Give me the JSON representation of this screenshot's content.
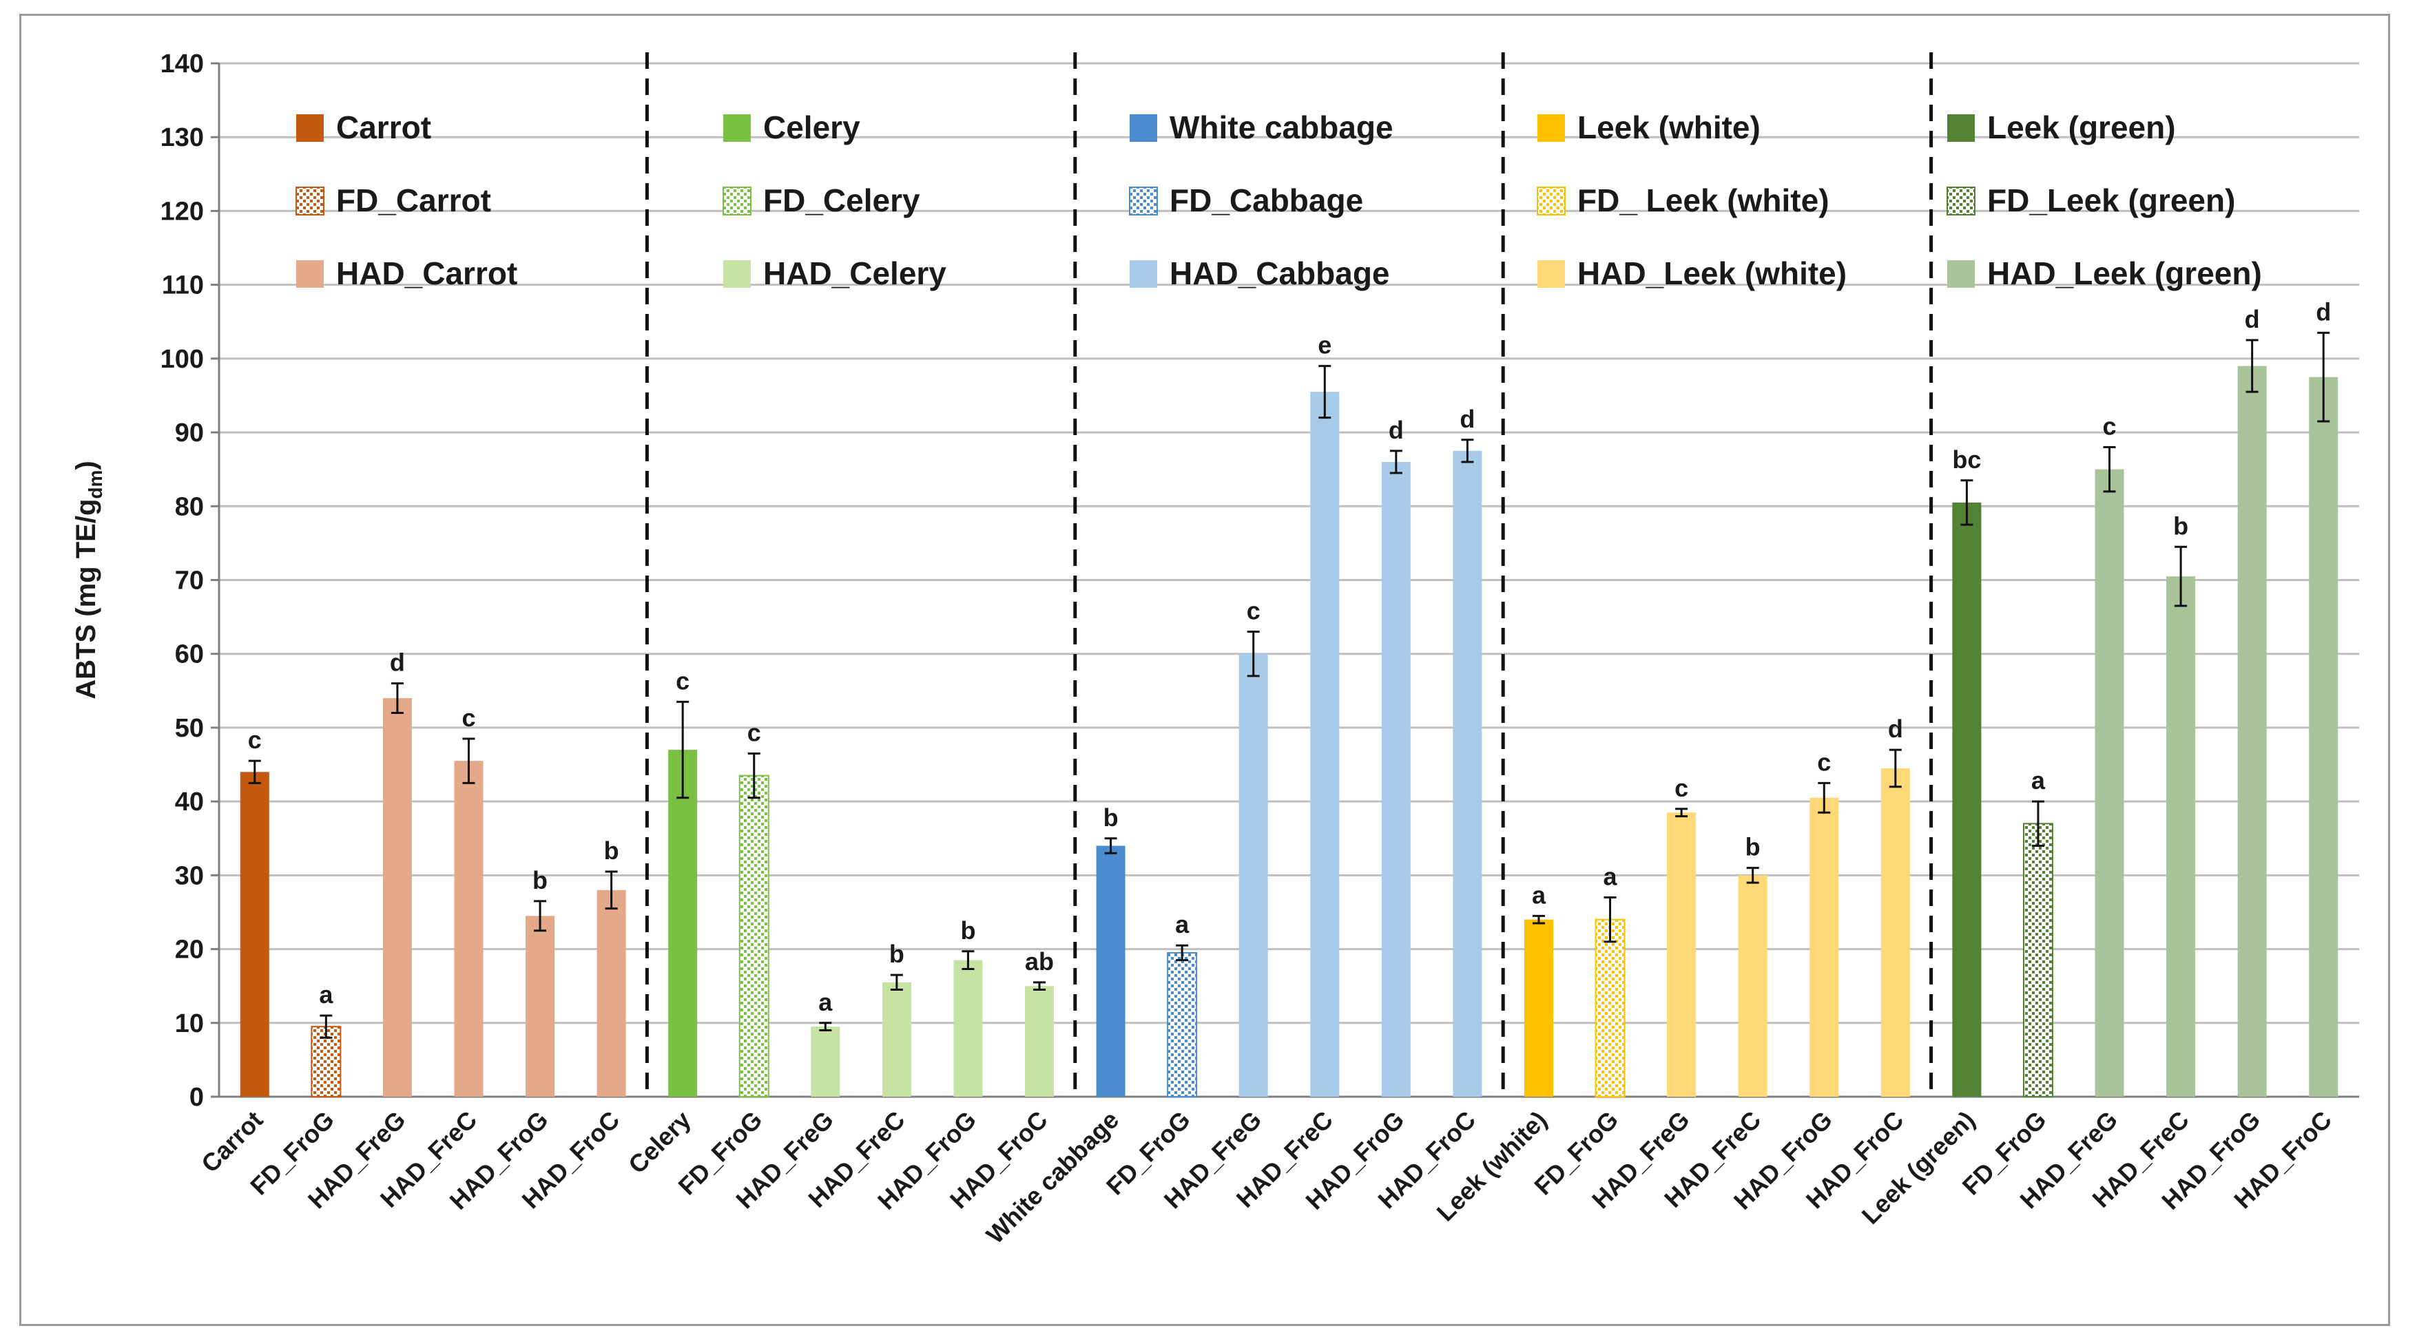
{
  "chart_data": {
    "type": "bar",
    "ylabel": "ABTS (mg TE/g",
    "ylabel_sub": "dm",
    "ylabel_close": ")",
    "ylim": [
      0,
      140
    ],
    "ytick_step": 10,
    "grid": true,
    "groups": [
      {
        "legend": [
          "Carrot",
          "FD_Carrot",
          "HAD_Carrot"
        ],
        "bars": [
          {
            "label": "Carrot",
            "value": 44,
            "err": 1.5,
            "letter": "c",
            "style": "solid"
          },
          {
            "label": "FD_FroG",
            "value": 9.5,
            "err": 1.5,
            "letter": "a",
            "style": "hatch"
          },
          {
            "label": "HAD_FreG",
            "value": 54,
            "err": 2,
            "letter": "d",
            "style": "light"
          },
          {
            "label": "HAD_FreC",
            "value": 45.5,
            "err": 3,
            "letter": "c",
            "style": "light"
          },
          {
            "label": "HAD_FroG",
            "value": 24.5,
            "err": 2,
            "letter": "b",
            "style": "light"
          },
          {
            "label": "HAD_FroC",
            "value": 28,
            "err": 2.5,
            "letter": "b",
            "style": "light"
          }
        ]
      },
      {
        "legend": [
          "Celery",
          "FD_Celery",
          "HAD_Celery"
        ],
        "bars": [
          {
            "label": "Celery",
            "value": 47,
            "err": 6.5,
            "letter": "c",
            "style": "solid"
          },
          {
            "label": "FD_FroG",
            "value": 43.5,
            "err": 3,
            "letter": "c",
            "style": "hatch"
          },
          {
            "label": "HAD_FreG",
            "value": 9.5,
            "err": 0.5,
            "letter": "a",
            "style": "light"
          },
          {
            "label": "HAD_FreC",
            "value": 15.5,
            "err": 1,
            "letter": "b",
            "style": "light"
          },
          {
            "label": "HAD_FroG",
            "value": 18.5,
            "err": 1.2,
            "letter": "b",
            "style": "light"
          },
          {
            "label": "HAD_FroC",
            "value": 15,
            "err": 0.5,
            "letter": "ab",
            "style": "light"
          }
        ]
      },
      {
        "legend": [
          "White cabbage",
          "FD_Cabbage",
          "HAD_Cabbage"
        ],
        "bars": [
          {
            "label": "White cabbage",
            "value": 34,
            "err": 1,
            "letter": "b",
            "style": "solid"
          },
          {
            "label": "FD_FroG",
            "value": 19.5,
            "err": 1,
            "letter": "a",
            "style": "hatch"
          },
          {
            "label": "HAD_FreG",
            "value": 60,
            "err": 3,
            "letter": "c",
            "style": "light"
          },
          {
            "label": "HAD_FreC",
            "value": 95.5,
            "err": 3.5,
            "letter": "e",
            "style": "light"
          },
          {
            "label": "HAD_FroG",
            "value": 86,
            "err": 1.5,
            "letter": "d",
            "style": "light"
          },
          {
            "label": "HAD_FroC",
            "value": 87.5,
            "err": 1.5,
            "letter": "d",
            "style": "light"
          }
        ]
      },
      {
        "legend": [
          "Leek (white)",
          "FD_ Leek (white)",
          "HAD_Leek (white)"
        ],
        "bars": [
          {
            "label": "Leek (white)",
            "value": 24,
            "err": 0.5,
            "letter": "a",
            "style": "solid"
          },
          {
            "label": "FD_FroG",
            "value": 24,
            "err": 3,
            "letter": "a",
            "style": "hatch"
          },
          {
            "label": "HAD_FreG",
            "value": 38.5,
            "err": 0.5,
            "letter": "c",
            "style": "light"
          },
          {
            "label": "HAD_FreC",
            "value": 30,
            "err": 1,
            "letter": "b",
            "style": "light"
          },
          {
            "label": "HAD_FroG",
            "value": 40.5,
            "err": 2,
            "letter": "c",
            "style": "light"
          },
          {
            "label": "HAD_FroC",
            "value": 44.5,
            "err": 2.5,
            "letter": "d",
            "style": "light"
          }
        ]
      },
      {
        "legend": [
          "Leek (green)",
          "FD_Leek (green)",
          "HAD_Leek (green)"
        ],
        "bars": [
          {
            "label": "Leek (green)",
            "value": 80.5,
            "err": 3,
            "letter": "bc",
            "style": "solid"
          },
          {
            "label": "FD_FroG",
            "value": 37,
            "err": 3,
            "letter": "a",
            "style": "hatch"
          },
          {
            "label": "HAD_FreG",
            "value": 85,
            "err": 3,
            "letter": "c",
            "style": "light"
          },
          {
            "label": "HAD_FreC",
            "value": 70.5,
            "err": 4,
            "letter": "b",
            "style": "light"
          },
          {
            "label": "HAD_FroG",
            "value": 99,
            "err": 3.5,
            "letter": "d",
            "style": "light"
          },
          {
            "label": "HAD_FroC",
            "value": 97.5,
            "err": 6,
            "letter": "d",
            "style": "light"
          }
        ]
      }
    ]
  },
  "colors": {
    "group_solid": [
      "#c65911",
      "#7ac143",
      "#4a8ccf",
      "#ffc000",
      "#548235"
    ],
    "group_light": [
      "#e4a98a",
      "#c6e3a4",
      "#a9cbea",
      "#ffd878",
      "#a9c39a"
    ],
    "grid": "#bfbfbf",
    "axis": "#7f7f7f",
    "text": "#1a1a1a"
  }
}
